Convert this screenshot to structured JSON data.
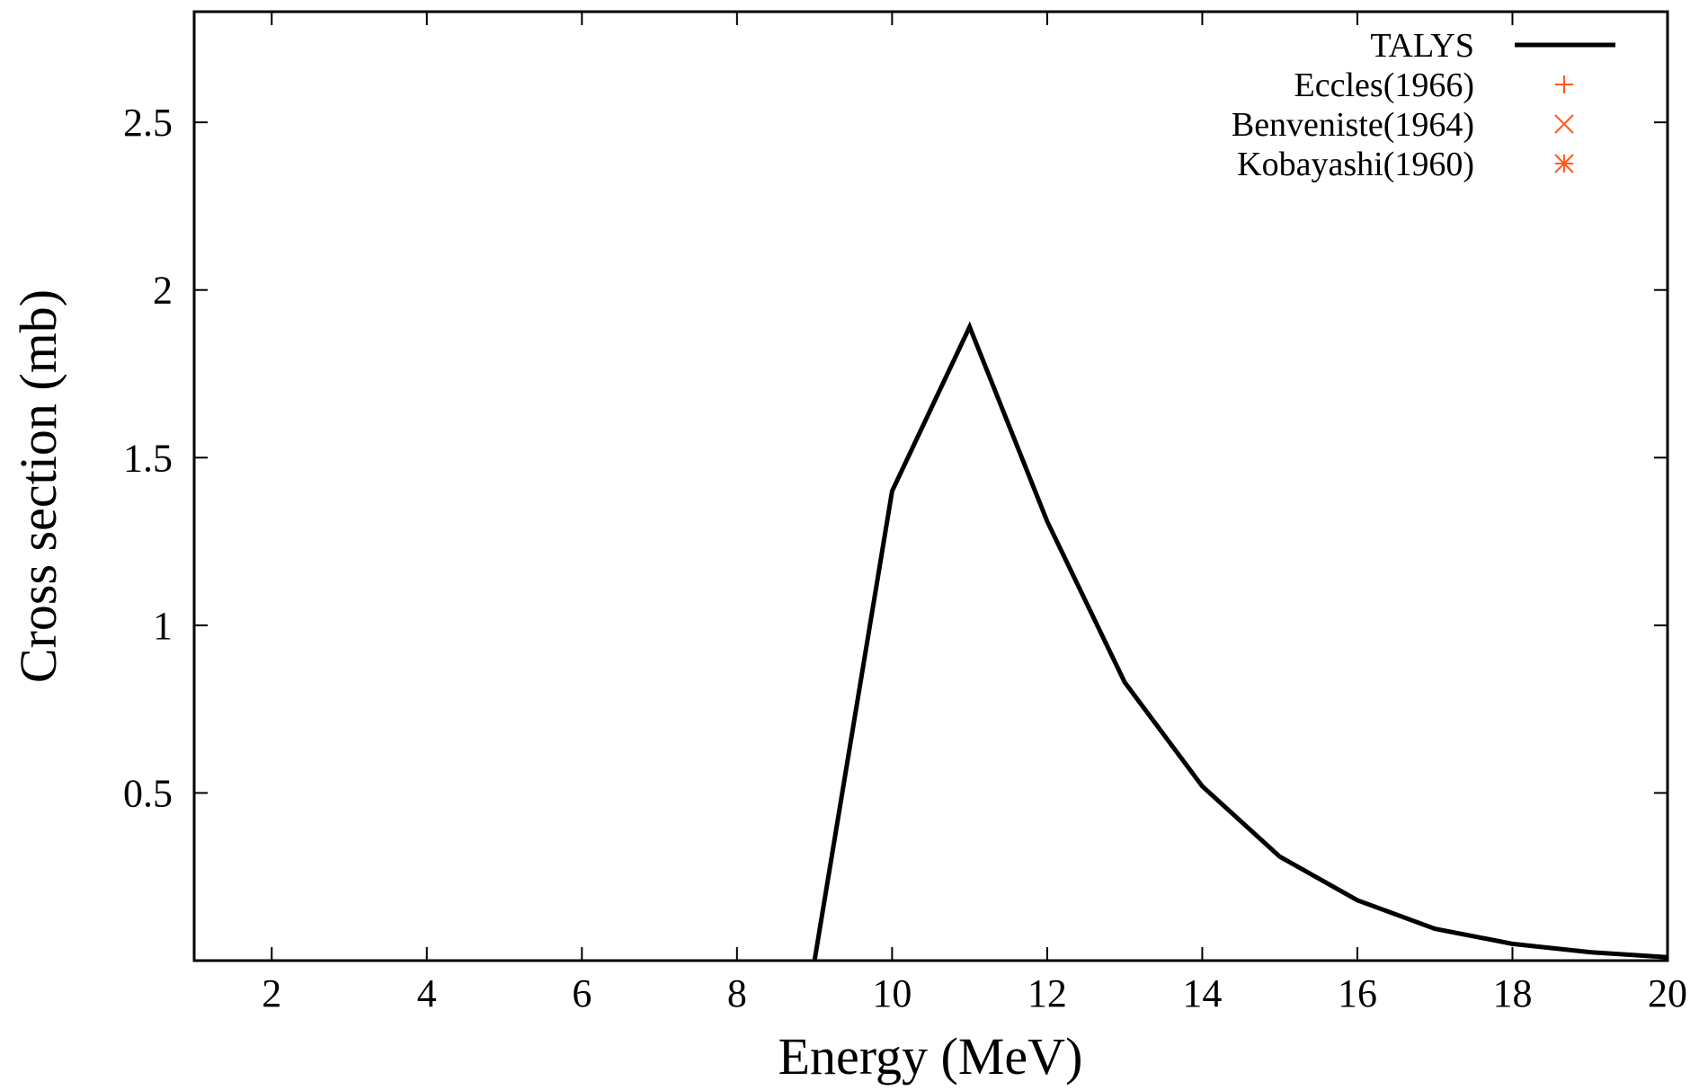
{
  "chart_data": {
    "type": "line",
    "title": "",
    "xlabel": "Energy (MeV)",
    "ylabel": "Cross section (mb)",
    "xlim": [
      1,
      20
    ],
    "ylim": [
      0,
      2.83
    ],
    "xticks": [
      2,
      4,
      6,
      8,
      10,
      12,
      14,
      16,
      18,
      20
    ],
    "xtick_labels": [
      "2",
      "4",
      "6",
      "8",
      "10",
      "12",
      "14",
      "16",
      "18",
      "20"
    ],
    "yticks": [
      0.5,
      1,
      1.5,
      2,
      2.5
    ],
    "ytick_labels": [
      "0.5",
      "1",
      "1.5",
      "2",
      "2.5"
    ],
    "grid": false,
    "legend_position": "top-right",
    "series": [
      {
        "name": "TALYS",
        "kind": "line",
        "color": "#000000",
        "x": [
          9,
          10,
          11,
          12,
          13,
          14,
          15,
          16,
          17,
          18,
          19,
          20
        ],
        "y": [
          0.0,
          1.4,
          1.89,
          1.31,
          0.83,
          0.52,
          0.31,
          0.18,
          0.095,
          0.05,
          0.025,
          0.01
        ]
      },
      {
        "name": "Eccles(1966)",
        "kind": "points",
        "marker": "plus",
        "color": "#ff5a1f",
        "x": [],
        "y": []
      },
      {
        "name": "Benveniste(1964)",
        "kind": "points",
        "marker": "cross",
        "color": "#ff5a1f",
        "x": [],
        "y": []
      },
      {
        "name": "Kobayashi(1960)",
        "kind": "points",
        "marker": "star",
        "color": "#ff5a1f",
        "x": [],
        "y": []
      }
    ]
  }
}
